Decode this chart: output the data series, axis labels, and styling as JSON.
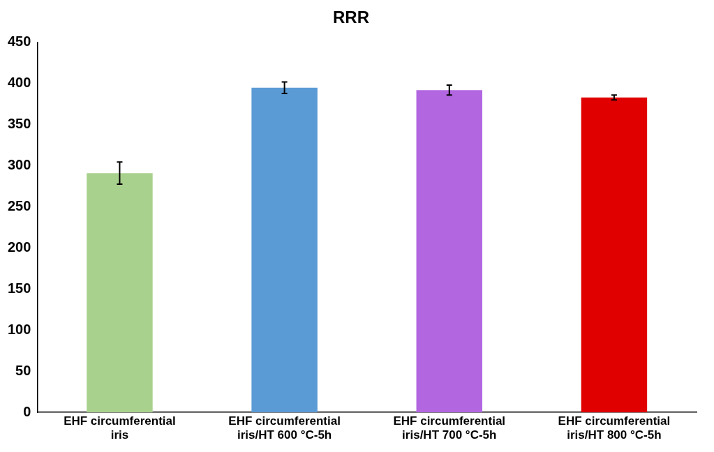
{
  "chart_data": {
    "type": "bar",
    "title": "RRR",
    "categories": [
      "EHF circumferential iris",
      "EHF circumferential iris/HT 600 °C-5h",
      "EHF circumferential iris/HT 700 °C-5h",
      "EHF circumferential iris/HT 800 °C-5h"
    ],
    "values": [
      291,
      395,
      392,
      383
    ],
    "colors": [
      "#a9d18e",
      "#5b9bd5",
      "#b266e0",
      "#e00000"
    ],
    "errors": [
      13.5,
      7,
      6,
      3
    ],
    "ylim": [
      0,
      450
    ],
    "yticks": [
      0,
      50,
      100,
      150,
      200,
      250,
      300,
      350,
      400,
      450
    ],
    "grid": false,
    "legend": false
  }
}
